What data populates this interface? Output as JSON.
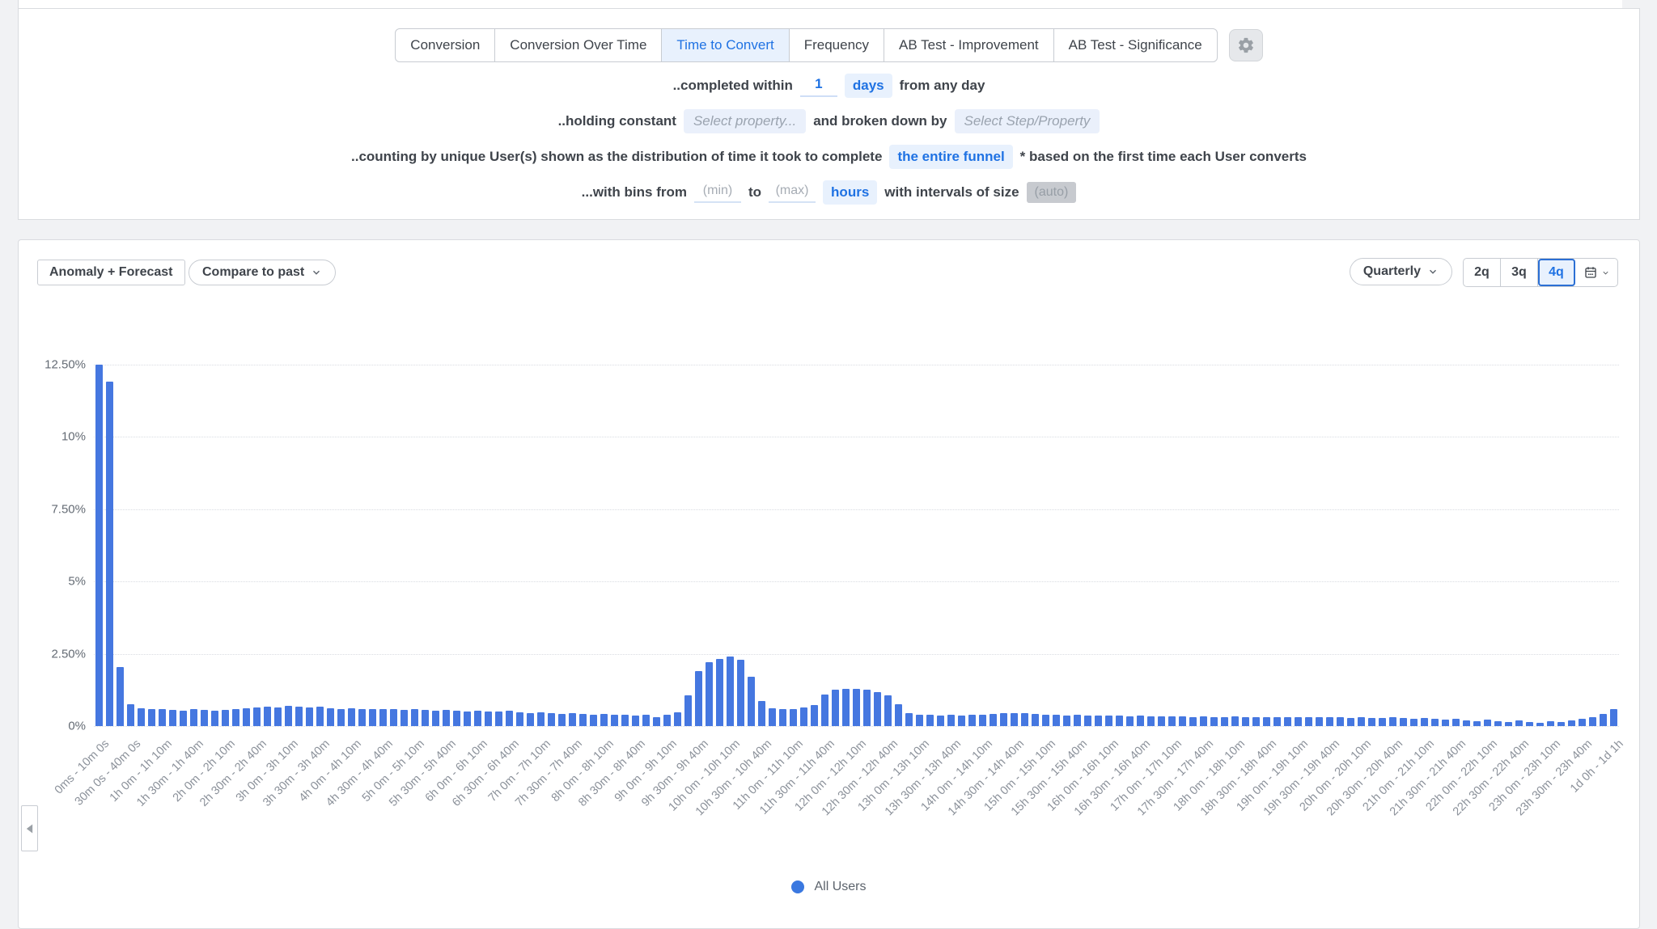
{
  "tabs": {
    "items": [
      {
        "id": "conversion",
        "label": "Conversion",
        "selected": false
      },
      {
        "id": "conversion-over-time",
        "label": "Conversion Over Time",
        "selected": false
      },
      {
        "id": "time-to-convert",
        "label": "Time to Convert",
        "selected": true
      },
      {
        "id": "frequency",
        "label": "Frequency",
        "selected": false
      },
      {
        "id": "ab-test-improvement",
        "label": "AB Test - Improvement",
        "selected": false
      },
      {
        "id": "ab-test-significance",
        "label": "AB Test - Significance",
        "selected": false
      }
    ]
  },
  "config": {
    "row1": {
      "prefix": "..completed within",
      "value": "1",
      "unit": "days",
      "suffix": "from any day"
    },
    "row2": {
      "prefix": "..holding constant",
      "placeholder1": "Select property...",
      "middle": "and broken down by",
      "placeholder2": "Select Step/Property"
    },
    "row3": {
      "prefix": "..counting by unique User(s) shown as the distribution of time it took to complete",
      "chip": "the entire funnel",
      "suffix": "* based on the first time each User converts"
    },
    "row4": {
      "prefix": "...with bins from",
      "min_placeholder": "(min)",
      "to": "to",
      "max_placeholder": "(max)",
      "unit": "hours",
      "middle": "with intervals of size",
      "auto": "(auto)"
    }
  },
  "chart_toolbar": {
    "anomaly_label": "Anomaly + Forecast",
    "compare_label": "Compare to past",
    "interval_label": "Quarterly",
    "ranges": [
      "2q",
      "3q",
      "4q"
    ],
    "selected_range": "4q"
  },
  "chart_data": {
    "type": "bar",
    "title": "",
    "xlabel": "",
    "ylabel": "",
    "legend": "All Users",
    "legend_position": "bottom-center",
    "grid": "horizontal-dotted",
    "bin_width": "10 minutes",
    "x_range": "0ms to 1d 1h",
    "ylim_percent": [
      0,
      12.5
    ],
    "y_tick_labels": [
      "12.50%",
      "10%",
      "7.50%",
      "5%",
      "2.50%",
      "0%"
    ],
    "x_tick_labels": [
      "0ms - 10m 0s",
      "30m 0s - 40m 0s",
      "1h 0m - 1h 10m",
      "1h 30m - 1h 40m",
      "2h 0m - 2h 10m",
      "2h 30m - 2h 40m",
      "3h 0m - 3h 10m",
      "3h 30m - 3h 40m",
      "4h 0m - 4h 10m",
      "4h 30m - 4h 40m",
      "5h 0m - 5h 10m",
      "5h 30m - 5h 40m",
      "6h 0m - 6h 10m",
      "6h 30m - 6h 40m",
      "7h 0m - 7h 10m",
      "7h 30m - 7h 40m",
      "8h 0m - 8h 10m",
      "8h 30m - 8h 40m",
      "9h 0m - 9h 10m",
      "9h 30m - 9h 40m",
      "10h 0m - 10h 10m",
      "10h 30m - 10h 40m",
      "11h 0m - 11h 10m",
      "11h 30m - 11h 40m",
      "12h 0m - 12h 10m",
      "12h 30m - 12h 40m",
      "13h 0m - 13h 10m",
      "13h 30m - 13h 40m",
      "14h 0m - 14h 10m",
      "14h 30m - 14h 40m",
      "15h 0m - 15h 10m",
      "15h 30m - 15h 40m",
      "16h 0m - 16h 10m",
      "16h 30m - 16h 40m",
      "17h 0m - 17h 10m",
      "17h 30m - 17h 40m",
      "18h 0m - 18h 10m",
      "18h 30m - 18h 40m",
      "19h 0m - 19h 10m",
      "19h 30m - 19h 40m",
      "20h 0m - 20h 10m",
      "20h 30m - 20h 40m",
      "21h 0m - 21h 10m",
      "21h 30m - 21h 40m",
      "22h 0m - 22h 10m",
      "22h 30m - 22h 40m",
      "23h 0m - 23h 10m",
      "23h 30m - 23h 40m",
      "1d 0h - 1d 1h"
    ],
    "label_every_n_bins": 3,
    "series": [
      {
        "name": "All Users",
        "values_percent": [
          12.5,
          11.9,
          2.05,
          0.75,
          0.62,
          0.6,
          0.58,
          0.55,
          0.52,
          0.6,
          0.55,
          0.52,
          0.55,
          0.58,
          0.62,
          0.65,
          0.68,
          0.65,
          0.7,
          0.68,
          0.65,
          0.68,
          0.62,
          0.6,
          0.62,
          0.6,
          0.58,
          0.6,
          0.58,
          0.55,
          0.58,
          0.55,
          0.52,
          0.55,
          0.52,
          0.5,
          0.52,
          0.5,
          0.5,
          0.52,
          0.48,
          0.45,
          0.48,
          0.45,
          0.42,
          0.45,
          0.42,
          0.4,
          0.42,
          0.4,
          0.38,
          0.35,
          0.38,
          0.32,
          0.38,
          0.48,
          1.05,
          1.9,
          2.2,
          2.32,
          2.4,
          2.28,
          1.7,
          0.88,
          0.62,
          0.58,
          0.6,
          0.65,
          0.72,
          1.1,
          1.25,
          1.3,
          1.28,
          1.25,
          1.18,
          1.05,
          0.75,
          0.45,
          0.4,
          0.38,
          0.36,
          0.38,
          0.36,
          0.38,
          0.4,
          0.42,
          0.45,
          0.46,
          0.44,
          0.42,
          0.4,
          0.38,
          0.36,
          0.38,
          0.36,
          0.35,
          0.36,
          0.35,
          0.34,
          0.35,
          0.34,
          0.33,
          0.34,
          0.33,
          0.32,
          0.33,
          0.32,
          0.32,
          0.33,
          0.32,
          0.31,
          0.32,
          0.31,
          0.3,
          0.32,
          0.3,
          0.3,
          0.31,
          0.3,
          0.29,
          0.3,
          0.29,
          0.28,
          0.3,
          0.28,
          0.26,
          0.28,
          0.25,
          0.22,
          0.25,
          0.2,
          0.18,
          0.22,
          0.18,
          0.15,
          0.2,
          0.15,
          0.12,
          0.18,
          0.14,
          0.2,
          0.25,
          0.3,
          0.42,
          0.6
        ]
      }
    ]
  },
  "colors": {
    "bar": "#4577e0",
    "selected_blue": "#1f72e3",
    "chip_blue_bg": "#e8f1fd",
    "panel_bg": "#ffffff",
    "page_bg": "#f1f2f4",
    "border": "#d9dbdf"
  }
}
